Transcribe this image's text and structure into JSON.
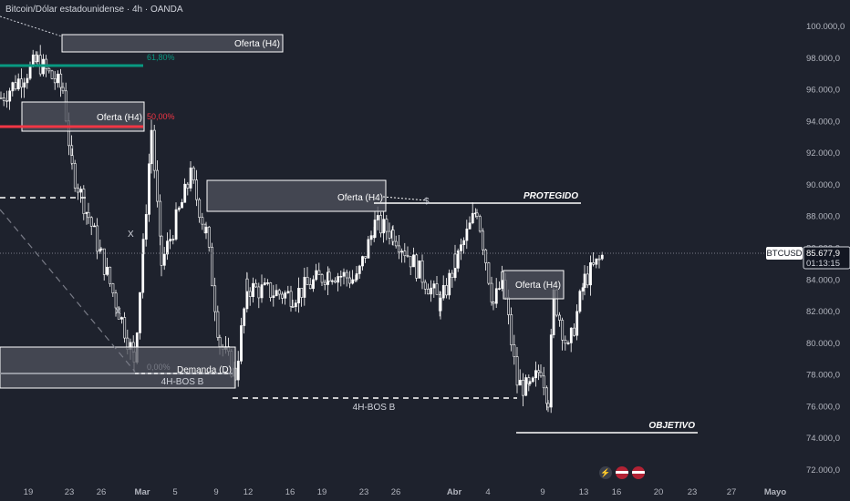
{
  "header": {
    "title": "Bitcoin/Dólar estadounidense · 4h · OANDA"
  },
  "price_tag": {
    "symbol": "BTCUSD",
    "price": "85.677,9",
    "countdown": "01:13:15"
  },
  "zones": [
    {
      "label": "Oferta (H4)"
    },
    {
      "label": "Oferta (H4)"
    },
    {
      "label": "Oferta (H4)"
    },
    {
      "label": "Oferta (H4)"
    },
    {
      "label": "Demanda (D)"
    }
  ],
  "annotations": {
    "fib_61": "61,80%",
    "fib_50": "50,00%",
    "fib_0": "0,00%",
    "protegido": "PROTEGIDO",
    "objetivo": "OBJETIVO",
    "bos_left": "4H-BOS B",
    "bos_mid": "4H-BOS B",
    "x_mark_1": "X",
    "x_mark_2": "X",
    "dollar_mark": "$"
  },
  "colors": {
    "background": "#1e222d",
    "candle_body": "#ffffff",
    "zone_fill": "#50535e",
    "fib_green": "#089981",
    "fib_red": "#f23645"
  },
  "icons": [
    "lightning-icon",
    "us-flag-icon",
    "us-flag-icon"
  ],
  "chart_data": {
    "type": "candlestick",
    "title": "Bitcoin/Dólar estadounidense · 4h · OANDA",
    "y_ticks": [
      "100.000,0",
      "98.000,0",
      "96.000,0",
      "94.000,0",
      "92.000,0",
      "90.000,0",
      "88.000,0",
      "86.000,0",
      "84.000,0",
      "82.000,0",
      "80.000,0",
      "78.000,0",
      "76.000,0",
      "74.000,0",
      "72.000,0"
    ],
    "ylim": [
      71200,
      101600
    ],
    "x_ticks": [
      "19",
      "23",
      "26",
      "Mar",
      "5",
      "9",
      "12",
      "16",
      "19",
      "23",
      "26",
      "Abr",
      "4",
      "9",
      "13",
      "16",
      "20",
      "23",
      "27",
      "Mayo"
    ],
    "last_price": 85677.9,
    "close_path": [
      {
        "t": "19",
        "close": 95500
      },
      {
        "t": "21",
        "close": 97800
      },
      {
        "t": "23",
        "close": 96000
      },
      {
        "t": "24",
        "close": 91000
      },
      {
        "t": "25",
        "close": 88000
      },
      {
        "t": "27",
        "close": 85500
      },
      {
        "t": "28",
        "close": 79000
      },
      {
        "t": "Mar",
        "close": 86000
      },
      {
        "t": "Mar 2",
        "close": 93500
      },
      {
        "t": "Mar 3",
        "close": 85000
      },
      {
        "t": "5",
        "close": 90500
      },
      {
        "t": "7",
        "close": 87000
      },
      {
        "t": "9",
        "close": 80000
      },
      {
        "t": "10",
        "close": 78000
      },
      {
        "t": "12",
        "close": 83500
      },
      {
        "t": "16",
        "close": 83000
      },
      {
        "t": "19",
        "close": 84500
      },
      {
        "t": "22",
        "close": 84000
      },
      {
        "t": "24",
        "close": 87500
      },
      {
        "t": "26",
        "close": 87000
      },
      {
        "t": "29",
        "close": 82500
      },
      {
        "t": "Abr",
        "close": 85000
      },
      {
        "t": "2",
        "close": 88500
      },
      {
        "t": "3",
        "close": 82500
      },
      {
        "t": "4",
        "close": 84000
      },
      {
        "t": "6",
        "close": 77500
      },
      {
        "t": "7",
        "close": 77000
      },
      {
        "t": "8",
        "close": 78500
      },
      {
        "t": "9",
        "close": 76500
      },
      {
        "t": "9b",
        "close": 83000
      },
      {
        "t": "10",
        "close": 79500
      },
      {
        "t": "12",
        "close": 84000
      },
      {
        "t": "14",
        "close": 85677.9
      }
    ],
    "levels": [
      {
        "name": "61,80%",
        "price": 97500
      },
      {
        "name": "50,00%",
        "price": 93800
      },
      {
        "name": "0,00%",
        "price": 78100
      },
      {
        "name": "PROTEGIDO",
        "price": 88800
      },
      {
        "name": "OBJETIVO",
        "price": 74400
      },
      {
        "name": "4H-BOS B",
        "price": 76500
      }
    ],
    "zones": [
      {
        "name": "Oferta (H4)",
        "low": 98400,
        "high": 99500
      },
      {
        "name": "Oferta (H4)",
        "low": 93600,
        "high": 95600
      },
      {
        "name": "Oferta (H4)",
        "low": 88300,
        "high": 90300
      },
      {
        "name": "Oferta (H4)",
        "low": 82800,
        "high": 84700
      },
      {
        "name": "Demanda (D)",
        "low": 77400,
        "high": 79800
      }
    ]
  }
}
